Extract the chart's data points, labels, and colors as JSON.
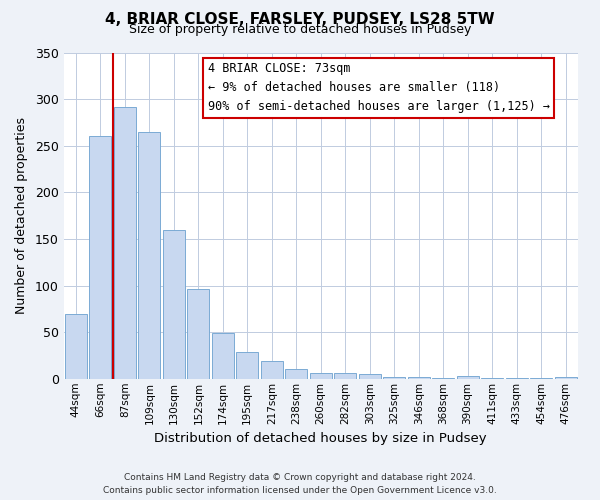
{
  "title": "4, BRIAR CLOSE, FARSLEY, PUDSEY, LS28 5TW",
  "subtitle": "Size of property relative to detached houses in Pudsey",
  "xlabel": "Distribution of detached houses by size in Pudsey",
  "ylabel": "Number of detached properties",
  "bar_labels": [
    "44sqm",
    "66sqm",
    "87sqm",
    "109sqm",
    "130sqm",
    "152sqm",
    "174sqm",
    "195sqm",
    "217sqm",
    "238sqm",
    "260sqm",
    "282sqm",
    "303sqm",
    "325sqm",
    "346sqm",
    "368sqm",
    "390sqm",
    "411sqm",
    "433sqm",
    "454sqm",
    "476sqm"
  ],
  "bar_values": [
    70,
    260,
    291,
    265,
    160,
    96,
    49,
    29,
    19,
    10,
    6,
    6,
    5,
    2,
    2,
    1,
    3,
    1,
    1,
    1,
    2
  ],
  "bar_color": "#c8d8f0",
  "bar_edge_color": "#7baad4",
  "vline_color": "#cc0000",
  "vline_x": 1.5,
  "ylim": [
    0,
    350
  ],
  "yticks": [
    0,
    50,
    100,
    150,
    200,
    250,
    300,
    350
  ],
  "annotation_title": "4 BRIAR CLOSE: 73sqm",
  "annotation_line1": "← 9% of detached houses are smaller (118)",
  "annotation_line2": "90% of semi-detached houses are larger (1,125) →",
  "annotation_box_color": "#ffffff",
  "annotation_box_edge": "#cc0000",
  "footer1": "Contains HM Land Registry data © Crown copyright and database right 2024.",
  "footer2": "Contains public sector information licensed under the Open Government Licence v3.0.",
  "bg_color": "#eef2f8",
  "plot_bg_color": "#ffffff",
  "grid_color": "#c0cce0"
}
